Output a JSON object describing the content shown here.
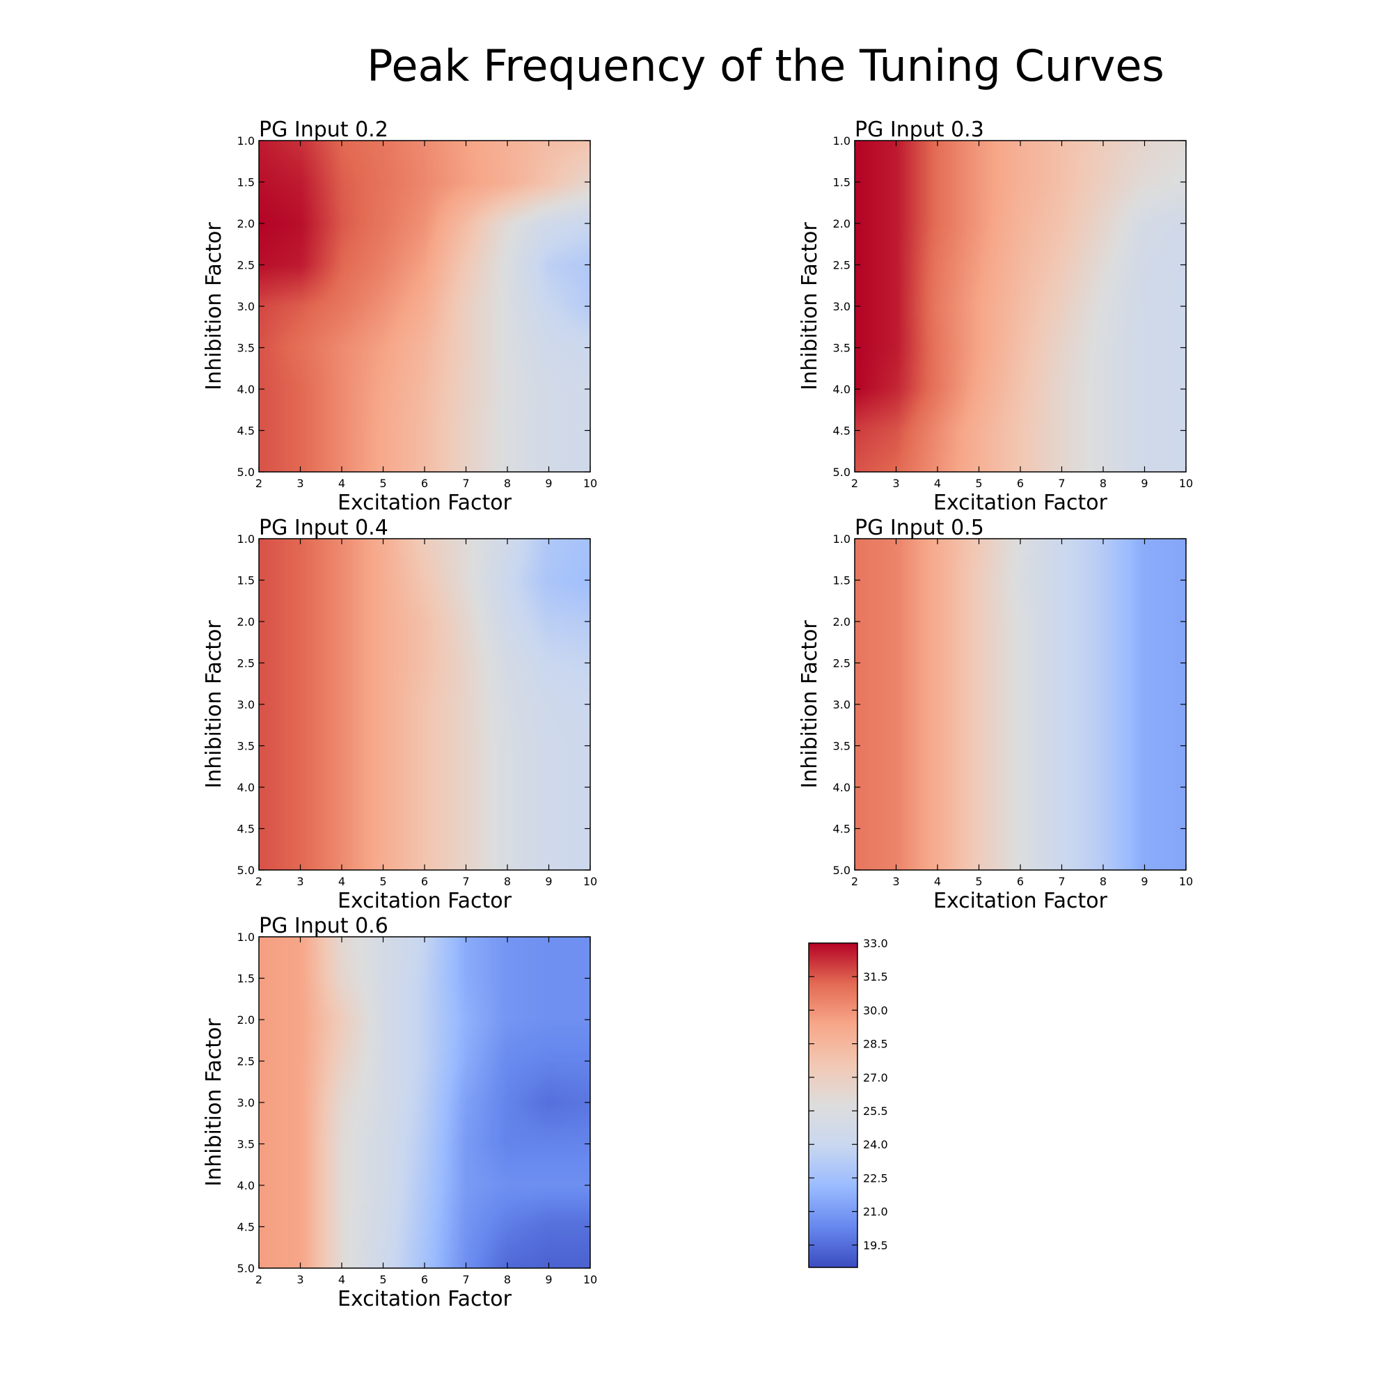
{
  "figure": {
    "title": "Peak Frequency of the Tuning Curves"
  },
  "colormap": {
    "name": "coolwarm",
    "stops": [
      "#3b4cc0",
      "#6788ee",
      "#9abbff",
      "#c9d7f0",
      "#dddddd",
      "#f2c8b4",
      "#f7a789",
      "#e36a53",
      "#b40426"
    ]
  },
  "colorbar": {
    "vmin": 18.5,
    "vmax": 33.0,
    "ticks": [
      "33.0",
      "31.5",
      "30.0",
      "28.5",
      "27.0",
      "25.5",
      "24.0",
      "22.5",
      "21.0",
      "19.5"
    ]
  },
  "chart_data": [
    {
      "type": "heatmap",
      "title": "PG Input 0.2",
      "xlabel": "Excitation Factor",
      "ylabel": "Inhibition Factor",
      "x": [
        2,
        3,
        4,
        5,
        6,
        7,
        8,
        9,
        10
      ],
      "y": [
        1.0,
        1.5,
        2.0,
        2.5,
        3.0,
        3.5,
        4.0,
        4.5,
        5.0
      ],
      "xlim": [
        2,
        10
      ],
      "ylim": [
        1.0,
        5.0
      ],
      "x_ticks": [
        "2",
        "3",
        "4",
        "5",
        "6",
        "7",
        "8",
        "9",
        "10"
      ],
      "y_ticks": [
        "1.0",
        "1.5",
        "2.0",
        "2.5",
        "3.0",
        "3.5",
        "4.0",
        "4.5",
        "5.0"
      ],
      "z": [
        [
          32.6,
          32.2,
          31.2,
          30.8,
          30.2,
          29.5,
          28.8,
          28.2,
          27.8
        ],
        [
          32.8,
          32.6,
          31.4,
          30.9,
          30.3,
          29.6,
          28.9,
          27.8,
          26.5
        ],
        [
          33.0,
          32.8,
          31.5,
          30.8,
          30.0,
          28.2,
          26.0,
          24.5,
          24.0
        ],
        [
          32.8,
          32.6,
          31.2,
          30.5,
          29.5,
          27.5,
          25.5,
          23.5,
          23.0
        ],
        [
          31.8,
          31.4,
          30.8,
          30.0,
          29.0,
          27.0,
          25.5,
          24.0,
          23.2
        ],
        [
          31.6,
          31.0,
          30.2,
          29.5,
          28.5,
          27.0,
          25.5,
          24.5,
          24.2
        ],
        [
          31.6,
          31.2,
          30.2,
          29.3,
          28.3,
          26.9,
          25.6,
          24.8,
          24.5
        ],
        [
          31.6,
          31.2,
          30.2,
          29.2,
          28.2,
          26.8,
          25.5,
          24.8,
          24.5
        ],
        [
          31.6,
          31.2,
          30.2,
          29.2,
          28.2,
          26.8,
          25.5,
          24.8,
          24.5
        ]
      ]
    },
    {
      "type": "heatmap",
      "title": "PG Input 0.3",
      "xlabel": "Excitation Factor",
      "ylabel": "Inhibition Factor",
      "x": [
        2,
        3,
        4,
        5,
        6,
        7,
        8,
        9,
        10
      ],
      "y": [
        1.0,
        1.5,
        2.0,
        2.5,
        3.0,
        3.5,
        4.0,
        4.5,
        5.0
      ],
      "xlim": [
        2,
        10
      ],
      "ylim": [
        1.0,
        5.0
      ],
      "x_ticks": [
        "2",
        "3",
        "4",
        "5",
        "6",
        "7",
        "8",
        "9",
        "10"
      ],
      "y_ticks": [
        "1.0",
        "1.5",
        "2.0",
        "2.5",
        "3.0",
        "3.5",
        "4.0",
        "4.5",
        "5.0"
      ],
      "z": [
        [
          33.0,
          32.6,
          31.0,
          29.8,
          28.8,
          28.0,
          27.2,
          26.4,
          26.0
        ],
        [
          33.0,
          32.6,
          31.0,
          29.8,
          28.8,
          28.0,
          27.0,
          26.0,
          25.6
        ],
        [
          33.0,
          32.6,
          31.0,
          29.8,
          28.6,
          27.8,
          26.5,
          25.0,
          24.6
        ],
        [
          33.0,
          32.6,
          30.8,
          29.6,
          28.4,
          27.4,
          26.0,
          24.7,
          24.4
        ],
        [
          33.0,
          32.6,
          30.7,
          29.4,
          28.2,
          27.0,
          25.6,
          24.6,
          24.4
        ],
        [
          33.0,
          32.6,
          30.8,
          29.4,
          28.0,
          26.6,
          25.4,
          24.6,
          24.4
        ],
        [
          33.0,
          32.4,
          30.8,
          29.2,
          27.8,
          26.4,
          25.4,
          24.6,
          24.4
        ],
        [
          32.0,
          31.6,
          30.2,
          28.8,
          27.6,
          26.4,
          25.4,
          24.6,
          24.4
        ],
        [
          31.6,
          31.2,
          30.0,
          28.8,
          27.6,
          26.4,
          25.4,
          24.6,
          24.4
        ]
      ]
    },
    {
      "type": "heatmap",
      "title": "PG Input 0.4",
      "xlabel": "Excitation Factor",
      "ylabel": "Inhibition Factor",
      "x": [
        2,
        3,
        4,
        5,
        6,
        7,
        8,
        9,
        10
      ],
      "y": [
        1.0,
        1.5,
        2.0,
        2.5,
        3.0,
        3.5,
        4.0,
        4.5,
        5.0
      ],
      "xlim": [
        2,
        10
      ],
      "ylim": [
        1.0,
        5.0
      ],
      "x_ticks": [
        "2",
        "3",
        "4",
        "5",
        "6",
        "7",
        "8",
        "9",
        "10"
      ],
      "y_ticks": [
        "1.0",
        "1.5",
        "2.0",
        "2.5",
        "3.0",
        "3.5",
        "4.0",
        "4.5",
        "5.0"
      ],
      "z": [
        [
          31.6,
          31.2,
          30.2,
          29.0,
          27.2,
          26.0,
          24.6,
          23.0,
          22.6
        ],
        [
          31.6,
          31.2,
          30.2,
          29.0,
          27.6,
          26.0,
          24.2,
          22.8,
          22.4
        ],
        [
          31.6,
          31.2,
          30.2,
          29.0,
          28.0,
          26.4,
          24.5,
          23.4,
          23.2
        ],
        [
          31.6,
          31.2,
          30.2,
          29.0,
          28.0,
          26.6,
          25.0,
          24.0,
          23.8
        ],
        [
          31.6,
          31.2,
          30.2,
          29.0,
          27.8,
          26.6,
          25.2,
          24.4,
          24.2
        ],
        [
          31.6,
          31.2,
          30.2,
          29.0,
          27.8,
          26.6,
          25.3,
          24.5,
          24.3
        ],
        [
          31.6,
          31.2,
          30.2,
          29.0,
          27.8,
          26.6,
          25.3,
          24.5,
          24.3
        ],
        [
          31.6,
          31.2,
          30.2,
          29.0,
          27.8,
          26.6,
          25.3,
          24.5,
          24.3
        ],
        [
          31.6,
          31.2,
          30.2,
          29.0,
          27.8,
          26.6,
          25.3,
          24.5,
          24.3
        ]
      ]
    },
    {
      "type": "heatmap",
      "title": "PG Input 0.5",
      "xlabel": "Excitation Factor",
      "ylabel": "Inhibition Factor",
      "x": [
        2,
        3,
        4,
        5,
        6,
        7,
        8,
        9,
        10
      ],
      "y": [
        1.0,
        1.5,
        2.0,
        2.5,
        3.0,
        3.5,
        4.0,
        4.5,
        5.0
      ],
      "xlim": [
        2,
        10
      ],
      "ylim": [
        1.0,
        5.0
      ],
      "x_ticks": [
        "2",
        "3",
        "4",
        "5",
        "6",
        "7",
        "8",
        "9",
        "10"
      ],
      "y_ticks": [
        "1.0",
        "1.5",
        "2.0",
        "2.5",
        "3.0",
        "3.5",
        "4.0",
        "4.5",
        "5.0"
      ],
      "z": [
        [
          30.8,
          30.4,
          29.0,
          27.4,
          25.6,
          24.2,
          23.2,
          21.6,
          21.4
        ],
        [
          30.8,
          30.4,
          29.0,
          27.2,
          25.4,
          24.2,
          23.2,
          21.6,
          21.4
        ],
        [
          30.8,
          30.4,
          29.0,
          27.2,
          25.6,
          24.2,
          23.2,
          21.6,
          21.4
        ],
        [
          30.8,
          30.4,
          29.0,
          27.2,
          25.6,
          24.2,
          23.2,
          21.6,
          21.4
        ],
        [
          30.8,
          30.4,
          29.0,
          27.2,
          25.6,
          24.2,
          23.2,
          21.6,
          21.4
        ],
        [
          30.8,
          30.4,
          29.0,
          27.2,
          25.6,
          24.2,
          23.2,
          21.6,
          21.4
        ],
        [
          30.8,
          30.4,
          29.0,
          27.2,
          25.6,
          24.2,
          23.2,
          21.6,
          21.4
        ],
        [
          30.8,
          30.4,
          29.0,
          27.2,
          25.6,
          24.2,
          23.2,
          21.6,
          21.4
        ],
        [
          30.8,
          30.4,
          29.0,
          27.2,
          25.6,
          24.2,
          23.2,
          21.6,
          21.4
        ]
      ]
    },
    {
      "type": "heatmap",
      "title": "PG Input 0.6",
      "xlabel": "Excitation Factor",
      "ylabel": "Inhibition Factor",
      "x": [
        2,
        3,
        4,
        5,
        6,
        7,
        8,
        9,
        10
      ],
      "y": [
        1.0,
        1.5,
        2.0,
        2.5,
        3.0,
        3.5,
        4.0,
        4.5,
        5.0
      ],
      "xlim": [
        2,
        10
      ],
      "ylim": [
        1.0,
        5.0
      ],
      "x_ticks": [
        "2",
        "3",
        "4",
        "5",
        "6",
        "7",
        "8",
        "9",
        "10"
      ],
      "y_ticks": [
        "1.0",
        "1.5",
        "2.0",
        "2.5",
        "3.0",
        "3.5",
        "4.0",
        "4.5",
        "5.0"
      ],
      "z": [
        [
          29.6,
          29.4,
          26.2,
          25.0,
          23.8,
          21.6,
          20.8,
          20.6,
          20.6
        ],
        [
          29.6,
          29.4,
          26.4,
          25.0,
          23.6,
          21.6,
          20.8,
          20.6,
          20.6
        ],
        [
          29.6,
          29.4,
          27.2,
          25.0,
          23.6,
          21.8,
          20.8,
          20.6,
          20.6
        ],
        [
          29.6,
          29.4,
          26.8,
          25.0,
          23.6,
          21.6,
          20.4,
          20.2,
          20.2
        ],
        [
          29.6,
          29.4,
          26.2,
          25.0,
          23.4,
          21.2,
          20.2,
          19.6,
          19.8
        ],
        [
          29.6,
          29.4,
          26.0,
          24.8,
          23.2,
          21.0,
          20.2,
          20.2,
          20.2
        ],
        [
          29.6,
          29.4,
          26.0,
          24.8,
          23.0,
          21.0,
          20.6,
          20.6,
          20.6
        ],
        [
          29.6,
          29.4,
          26.0,
          24.6,
          22.8,
          20.8,
          20.0,
          19.6,
          19.6
        ],
        [
          29.6,
          29.4,
          26.0,
          24.4,
          22.6,
          20.6,
          19.4,
          19.2,
          19.2
        ]
      ]
    }
  ]
}
